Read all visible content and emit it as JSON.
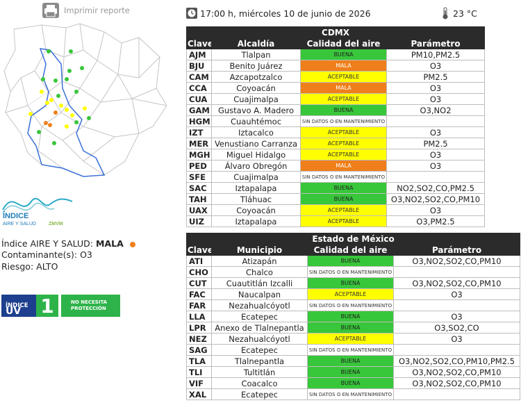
{
  "print": {
    "label": "Imprimir reporte",
    "icon": "printer-icon"
  },
  "header": {
    "datetime": "17:00 h, miércoles 10 de junio de 2026",
    "temperature": "23 °C",
    "clock_icon": "clock-icon",
    "thermometer_icon": "thermometer-icon"
  },
  "logo": {
    "title": "ÍNDICE",
    "subtitle": "AIRE Y SALUD",
    "org": "ZMVM"
  },
  "air_quality": {
    "index_label": "Índice AIRE Y SALUD:",
    "index_value": "MALA",
    "index_color": "#ef7f1a",
    "pollutant_label": "Contaminante(s):",
    "pollutant_value": "O3",
    "risk_label": "Riesgo:",
    "risk_value": "ALTO"
  },
  "uv": {
    "label_small": "ÍNDICE",
    "label_big": "UV",
    "value": "1",
    "note_line1": "NO NECESITA",
    "note_line2": "PROTECCIÓN"
  },
  "colors": {
    "buena": "#38c63a",
    "mala": "#ef7f1a",
    "aceptable": "#ffff00",
    "header": "#2b2b2b",
    "uv_blue": "#1d3f8d"
  },
  "cdmx": {
    "title": "CDMX",
    "headers": [
      "Clave",
      "Alcaldía",
      "Calidad del aire",
      "Parámetro"
    ],
    "rows": [
      {
        "key": "AJM",
        "name": "Tlalpan",
        "quality": "BUENA",
        "param": "PM10,PM2.5"
      },
      {
        "key": "BJU",
        "name": "Benito Juárez",
        "quality": "MALA",
        "param": "O3"
      },
      {
        "key": "CAM",
        "name": "Azcapotzalco",
        "quality": "ACEPTABLE",
        "param": "PM2.5"
      },
      {
        "key": "CCA",
        "name": "Coyoacán",
        "quality": "MALA",
        "param": "O3"
      },
      {
        "key": "CUA",
        "name": "Cuajimalpa",
        "quality": "ACEPTABLE",
        "param": "O3"
      },
      {
        "key": "GAM",
        "name": "Gustavo A. Madero",
        "quality": "BUENA",
        "param": "O3,NO2"
      },
      {
        "key": "HGM",
        "name": "Cuauhtémoc",
        "quality": "SIN DATOS O EN MANTENIMIENTO",
        "param": ""
      },
      {
        "key": "IZT",
        "name": "Iztacalco",
        "quality": "ACEPTABLE",
        "param": "O3"
      },
      {
        "key": "MER",
        "name": "Venustiano Carranza",
        "quality": "ACEPTABLE",
        "param": "PM2.5"
      },
      {
        "key": "MGH",
        "name": "Miguel Hidalgo",
        "quality": "ACEPTABLE",
        "param": "O3"
      },
      {
        "key": "PED",
        "name": "Álvaro Obregón",
        "quality": "MALA",
        "param": "O3"
      },
      {
        "key": "SFE",
        "name": "Cuajimalpa",
        "quality": "SIN DATOS O EN MANTENIMIENTO",
        "param": ""
      },
      {
        "key": "SAC",
        "name": "Iztapalapa",
        "quality": "BUENA",
        "param": "NO2,SO2,CO,PM2.5"
      },
      {
        "key": "TAH",
        "name": "Tláhuac",
        "quality": "BUENA",
        "param": "O3,NO2,SO2,CO,PM10"
      },
      {
        "key": "UAX",
        "name": "Coyoacán",
        "quality": "ACEPTABLE",
        "param": "O3"
      },
      {
        "key": "UIZ",
        "name": "Iztapalapa",
        "quality": "ACEPTABLE",
        "param": "O3,PM2.5"
      }
    ]
  },
  "edomex": {
    "title": "Estado de México",
    "headers": [
      "Clave",
      "Municipio",
      "Calidad del aire",
      "Parámetro"
    ],
    "rows": [
      {
        "key": "ATI",
        "name": "Atizapán",
        "quality": "BUENA",
        "param": "O3,NO2,SO2,CO,PM10"
      },
      {
        "key": "CHO",
        "name": "Chalco",
        "quality": "SIN DATOS O EN MANTENIMIENTO",
        "param": ""
      },
      {
        "key": "CUT",
        "name": "Cuautitlán Izcalli",
        "quality": "BUENA",
        "param": "O3,NO2,SO2,CO,PM10"
      },
      {
        "key": "FAC",
        "name": "Naucalpan",
        "quality": "ACEPTABLE",
        "param": "O3"
      },
      {
        "key": "FAR",
        "name": "Nezahualcóyotl",
        "quality": "SIN DATOS O EN MANTENIMIENTO",
        "param": ""
      },
      {
        "key": "LLA",
        "name": "Ecatepec",
        "quality": "BUENA",
        "param": "O3"
      },
      {
        "key": "LPR",
        "name": "Anexo de Tlalnepantla",
        "quality": "BUENA",
        "param": "O3,SO2,CO"
      },
      {
        "key": "NEZ",
        "name": "Nezahualcóyotl",
        "quality": "ACEPTABLE",
        "param": "O3"
      },
      {
        "key": "SAG",
        "name": "Ecatepec",
        "quality": "SIN DATOS O EN MANTENIMIENTO",
        "param": ""
      },
      {
        "key": "TLA",
        "name": "Tlalnepantla",
        "quality": "BUENA",
        "param": "O3,NO2,SO2,CO,PM10,PM2.5"
      },
      {
        "key": "TLI",
        "name": "Tultitlán",
        "quality": "BUENA",
        "param": "O3,NO2,SO2,CO,PM10"
      },
      {
        "key": "VIF",
        "name": "Coacalco",
        "quality": "BUENA",
        "param": "O3,NO2,SO2,CO,PM10"
      },
      {
        "key": "XAL",
        "name": "Ecatepec",
        "quality": "SIN DATOS O EN MANTENIMIENTO",
        "param": ""
      }
    ]
  },
  "map": {
    "stations": [
      {
        "q": "buena"
      },
      {
        "q": "buena"
      },
      {
        "q": "buena"
      },
      {
        "q": "buena"
      },
      {
        "q": "buena"
      },
      {
        "q": "buena"
      },
      {
        "q": "buena"
      },
      {
        "q": "buena"
      },
      {
        "q": "buena"
      },
      {
        "q": "buena"
      },
      {
        "q": "buena"
      },
      {
        "q": "buena"
      },
      {
        "q": "aceptable"
      },
      {
        "q": "aceptable"
      },
      {
        "q": "aceptable"
      },
      {
        "q": "aceptable"
      },
      {
        "q": "aceptable"
      },
      {
        "q": "aceptable"
      },
      {
        "q": "aceptable"
      },
      {
        "q": "aceptable"
      },
      {
        "q": "aceptable"
      },
      {
        "q": "mala"
      },
      {
        "q": "mala"
      },
      {
        "q": "mala"
      },
      {
        "q": "buena"
      }
    ]
  }
}
